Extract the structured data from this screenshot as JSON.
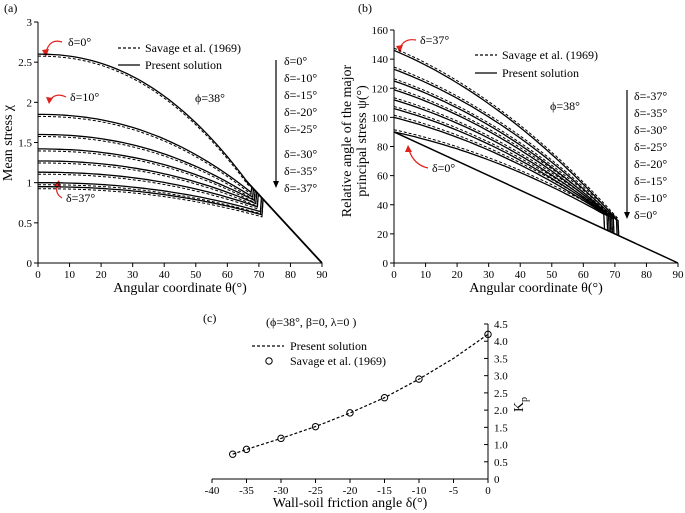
{
  "chart_data": [
    {
      "type": "line",
      "panel_label": "(a)",
      "title": "",
      "xlabel": "Angular coordinate θ(°)",
      "ylabel": "Mean stress χ",
      "xlim": [
        0,
        90
      ],
      "ylim": [
        0,
        3
      ],
      "x_ticks": [
        "0",
        "10",
        "20",
        "30",
        "40",
        "50",
        "60",
        "70",
        "80",
        "90"
      ],
      "y_ticks": [
        "0",
        "0.5",
        "1",
        "1.5",
        "2",
        "2.5",
        "3"
      ],
      "legend": [
        "Savage et al. (1969)",
        "Present solution"
      ],
      "annotation": "ϕ=38°",
      "delta_list": [
        "δ=0°",
        "δ=-10°",
        "δ=-15°",
        "δ=-20°",
        "δ=-25°",
        "δ=-30°",
        "δ=-35°",
        "δ=-37°"
      ],
      "callouts": [
        "δ=0°",
        "δ=10°",
        "δ=37°"
      ],
      "series": [
        {
          "name": "δ=0°",
          "start": 2.6,
          "end_theta": 66.5,
          "end_value": 1.02
        },
        {
          "name": "δ=-10°",
          "start": 1.85,
          "end_theta": 67.5,
          "end_value": 0.88
        },
        {
          "name": "δ=-15°",
          "start": 1.6,
          "end_theta": 68.0,
          "end_value": 0.82
        },
        {
          "name": "δ=-20°",
          "start": 1.42,
          "end_theta": 68.5,
          "end_value": 0.78
        },
        {
          "name": "δ=-25°",
          "start": 1.27,
          "end_theta": 69.0,
          "end_value": 0.74
        },
        {
          "name": "δ=-30°",
          "start": 1.13,
          "end_theta": 69.5,
          "end_value": 0.7
        },
        {
          "name": "δ=-35°",
          "start": 1.0,
          "end_theta": 70.5,
          "end_value": 0.64
        },
        {
          "name": "δ=-37°",
          "start": 0.95,
          "end_theta": 71.0,
          "end_value": 0.6
        }
      ]
    },
    {
      "type": "line",
      "panel_label": "(b)",
      "xlabel": "Angular coordinate θ(°)",
      "ylabel": "Relative angle of the major principal stress ψ(°)",
      "ylabel_line1": "Relative angle of the major",
      "ylabel_line2": "principal stress ψ(°)",
      "xlim": [
        0,
        90
      ],
      "ylim": [
        0,
        160
      ],
      "x_ticks": [
        "0",
        "10",
        "20",
        "30",
        "40",
        "50",
        "60",
        "70",
        "80",
        "90"
      ],
      "y_ticks": [
        "0",
        "20",
        "40",
        "60",
        "80",
        "100",
        "120",
        "140",
        "160"
      ],
      "legend": [
        "Savage et al. (1969)",
        "Present solution"
      ],
      "annotation": "ϕ=38°",
      "delta_list": [
        "δ=-37°",
        "δ=-35°",
        "δ=-30°",
        "δ=-25°",
        "δ=-20°",
        "δ=-15°",
        "δ=-10°",
        "δ=0°"
      ],
      "callouts": [
        "δ=37°",
        "δ=0°"
      ],
      "series": [
        {
          "name": "δ=0°",
          "start": 90,
          "end_theta": 66.5
        },
        {
          "name": "δ=-10°",
          "start": 100,
          "end_theta": 67.5
        },
        {
          "name": "δ=-15°",
          "start": 106,
          "end_theta": 68.0
        },
        {
          "name": "δ=-20°",
          "start": 112,
          "end_theta": 68.5
        },
        {
          "name": "δ=-25°",
          "start": 119,
          "end_theta": 69.0
        },
        {
          "name": "δ=-30°",
          "start": 125,
          "end_theta": 69.5
        },
        {
          "name": "δ=-35°",
          "start": 133,
          "end_theta": 70.5
        },
        {
          "name": "δ=-37°",
          "start": 146,
          "end_theta": 71.0
        }
      ]
    },
    {
      "type": "line",
      "panel_label": "(c)",
      "title": "(ϕ=38°, β=0, λ=0 )",
      "xlabel": "Wall-soil friction angle δ(°)",
      "ylabel": "Kp",
      "ylabel_main": "K",
      "ylabel_sub": "p",
      "xlim": [
        -40,
        0
      ],
      "ylim": [
        0,
        4.5
      ],
      "x_ticks": [
        "-40",
        "-35",
        "-30",
        "-25",
        "-20",
        "-15",
        "-10",
        "-5",
        "0"
      ],
      "y_ticks": [
        "0",
        "0.5",
        "1.0",
        "1.5",
        "2.0",
        "2.5",
        "3.0",
        "3.5",
        "4.0",
        "4.5"
      ],
      "legend": [
        "Present solution",
        "Savage et al. (1969)"
      ],
      "present_solution": {
        "x": [
          -37,
          -35,
          -30,
          -25,
          -20,
          -15,
          -10,
          -5,
          0
        ],
        "y": [
          0.72,
          0.86,
          1.18,
          1.52,
          1.92,
          2.36,
          2.9,
          3.5,
          4.2
        ]
      },
      "savage": {
        "x": [
          -37,
          -35,
          -30,
          -25,
          -20,
          -15,
          -10,
          0
        ],
        "y": [
          0.72,
          0.86,
          1.18,
          1.52,
          1.92,
          2.36,
          2.9,
          4.2
        ]
      }
    }
  ]
}
